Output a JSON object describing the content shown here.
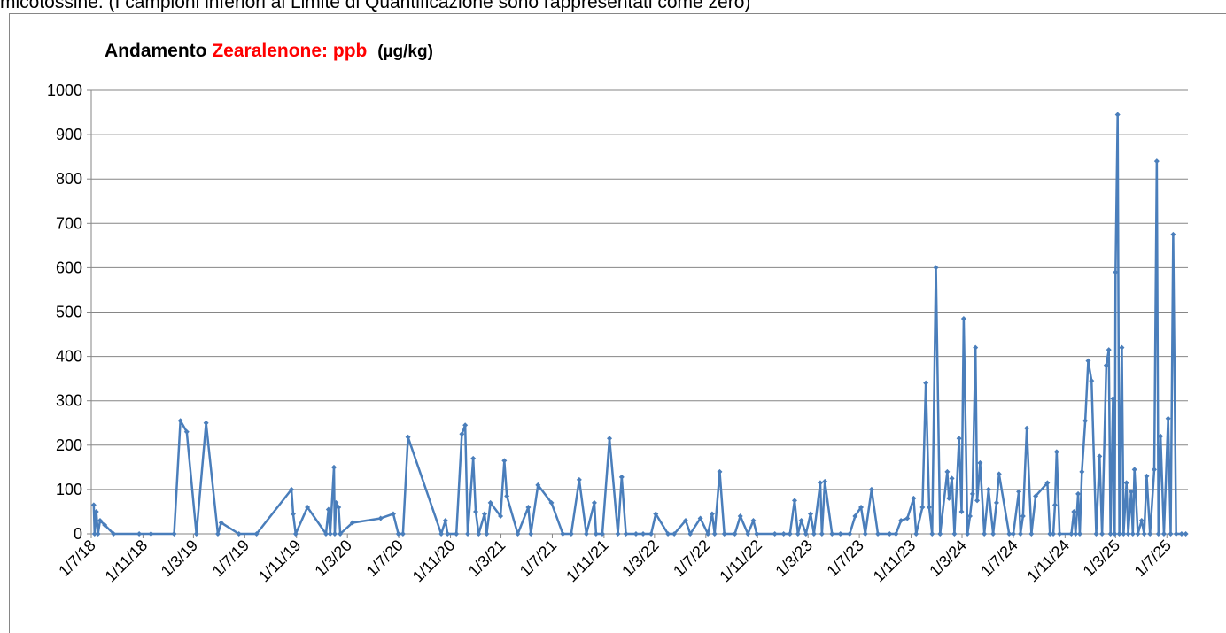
{
  "header_text": "micotossine. (I campioni inferiori al Limite di Quantificazione sono rappresentati come zero)",
  "chart_data": {
    "type": "line",
    "title": [
      "Andamento",
      "Zearalenone:",
      "ppb",
      "(µg/kg)"
    ],
    "title_colors": [
      "#000000",
      "#ff0000",
      "#ff0000",
      "#000000"
    ],
    "color": "#4a7ebb",
    "grid": true,
    "ylim": [
      0,
      1000
    ],
    "yticks": [
      0,
      100,
      200,
      300,
      400,
      500,
      600,
      700,
      800,
      900,
      1000
    ],
    "xlim": [
      "2018-07-01",
      "2025-08-20"
    ],
    "xticks": [
      {
        "value": "2018-07-01",
        "label": "1/7/18"
      },
      {
        "value": "2018-11-01",
        "label": "1/11/18"
      },
      {
        "value": "2019-03-01",
        "label": "1/3/19"
      },
      {
        "value": "2019-07-01",
        "label": "1/7/19"
      },
      {
        "value": "2019-11-01",
        "label": "1/11/19"
      },
      {
        "value": "2020-03-01",
        "label": "1/3/20"
      },
      {
        "value": "2020-07-01",
        "label": "1/7/20"
      },
      {
        "value": "2020-11-01",
        "label": "1/11/20"
      },
      {
        "value": "2021-03-01",
        "label": "1/3/21"
      },
      {
        "value": "2021-07-01",
        "label": "1/7/21"
      },
      {
        "value": "2021-11-01",
        "label": "1/11/21"
      },
      {
        "value": "2022-03-01",
        "label": "1/3/22"
      },
      {
        "value": "2022-07-01",
        "label": "1/7/22"
      },
      {
        "value": "2022-11-01",
        "label": "1/11/22"
      },
      {
        "value": "2023-03-01",
        "label": "1/3/23"
      },
      {
        "value": "2023-07-01",
        "label": "1/7/23"
      },
      {
        "value": "2023-11-01",
        "label": "1/11/23"
      },
      {
        "value": "2024-03-01",
        "label": "1/3/24"
      },
      {
        "value": "2024-07-01",
        "label": "1/7/24"
      },
      {
        "value": "2024-11-01",
        "label": "1/11/24"
      },
      {
        "value": "2025-03-01",
        "label": "1/3/25"
      },
      {
        "value": "2025-07-01",
        "label": "1/7/25"
      }
    ],
    "x": [
      "2018-07-07",
      "2018-07-09",
      "2018-07-13",
      "2018-07-17",
      "2018-07-22",
      "2018-08-02",
      "2018-08-23",
      "2018-10-23",
      "2018-11-20",
      "2019-01-14",
      "2019-01-29",
      "2019-02-13",
      "2019-03-08",
      "2019-03-31",
      "2019-04-28",
      "2019-05-06",
      "2019-06-17",
      "2019-07-29",
      "2019-10-20",
      "2019-10-24",
      "2019-10-30",
      "2019-11-27",
      "2020-01-10",
      "2020-01-16",
      "2020-01-20",
      "2020-01-29",
      "2020-01-31",
      "2020-02-03",
      "2020-02-09",
      "2020-02-13",
      "2020-03-13",
      "2020-05-19",
      "2020-06-18",
      "2020-06-30",
      "2020-07-11",
      "2020-07-23",
      "2020-10-10",
      "2020-10-20",
      "2020-10-25",
      "2020-11-15",
      "2020-11-28",
      "2020-12-06",
      "2020-12-12",
      "2020-12-25",
      "2020-12-31",
      "2021-01-07",
      "2021-01-21",
      "2021-01-26",
      "2021-02-04",
      "2021-02-28",
      "2021-03-09",
      "2021-03-15",
      "2021-04-10",
      "2021-05-05",
      "2021-05-11",
      "2021-05-28",
      "2021-06-29",
      "2021-07-26",
      "2021-08-15",
      "2021-09-03",
      "2021-09-20",
      "2021-10-09",
      "2021-10-13",
      "2021-10-28",
      "2021-11-14",
      "2021-12-04",
      "2021-12-13",
      "2021-12-23",
      "2022-01-16",
      "2022-02-02",
      "2022-02-21",
      "2022-03-04",
      "2022-04-02",
      "2022-04-17",
      "2022-05-14",
      "2022-05-25",
      "2022-06-18",
      "2022-07-06",
      "2022-07-16",
      "2022-07-22",
      "2022-08-03",
      "2022-08-14",
      "2022-09-08",
      "2022-09-21",
      "2022-10-09",
      "2022-10-22",
      "2022-10-30",
      "2022-12-12",
      "2023-01-02",
      "2023-01-17",
      "2023-01-28",
      "2023-02-05",
      "2023-02-13",
      "2023-02-24",
      "2023-03-07",
      "2023-03-15",
      "2023-03-30",
      "2023-04-03",
      "2023-04-10",
      "2023-04-27",
      "2023-05-17",
      "2023-06-08",
      "2023-06-21",
      "2023-07-05",
      "2023-07-15",
      "2023-07-30",
      "2023-08-14",
      "2023-09-11",
      "2023-09-26",
      "2023-10-08",
      "2023-10-23",
      "2023-11-07",
      "2023-11-13",
      "2023-11-28",
      "2023-12-06",
      "2023-12-14",
      "2023-12-21",
      "2023-12-30",
      "2024-01-09",
      "2024-01-26",
      "2024-01-30",
      "2024-02-06",
      "2024-02-12",
      "2024-02-23",
      "2024-02-29",
      "2024-03-05",
      "2024-03-14",
      "2024-03-20",
      "2024-03-26",
      "2024-04-02",
      "2024-04-06",
      "2024-04-13",
      "2024-04-23",
      "2024-05-03",
      "2024-05-14",
      "2024-05-22",
      "2024-05-28",
      "2024-06-21",
      "2024-07-01",
      "2024-07-14",
      "2024-07-18",
      "2024-07-24",
      "2024-08-02",
      "2024-08-13",
      "2024-08-23",
      "2024-09-20",
      "2024-09-26",
      "2024-10-04",
      "2024-10-08",
      "2024-10-12",
      "2024-10-19",
      "2024-11-16",
      "2024-11-22",
      "2024-11-26",
      "2024-12-02",
      "2024-12-06",
      "2024-12-11",
      "2024-12-19",
      "2024-12-26",
      "2025-01-03",
      "2025-01-14",
      "2025-01-22",
      "2025-01-28",
      "2025-02-07",
      "2025-02-13",
      "2025-02-17",
      "2025-02-23",
      "2025-02-27",
      "2025-03-01",
      "2025-03-06",
      "2025-03-10",
      "2025-03-16",
      "2025-03-20",
      "2025-03-27",
      "2025-03-31",
      "2025-04-07",
      "2025-04-11",
      "2025-04-15",
      "2025-04-23",
      "2025-05-02",
      "2025-05-08",
      "2025-05-14",
      "2025-05-22",
      "2025-06-01",
      "2025-06-07",
      "2025-06-11",
      "2025-06-16",
      "2025-06-24",
      "2025-07-04",
      "2025-07-10",
      "2025-07-16",
      "2025-07-23",
      "2025-08-05",
      "2025-08-15"
    ],
    "values": [
      65,
      0,
      50,
      0,
      30,
      20,
      0,
      0,
      0,
      0,
      255,
      230,
      0,
      250,
      0,
      25,
      0,
      0,
      100,
      45,
      0,
      60,
      0,
      55,
      0,
      150,
      0,
      70,
      60,
      0,
      25,
      35,
      45,
      0,
      0,
      218,
      0,
      30,
      0,
      0,
      225,
      245,
      0,
      170,
      50,
      0,
      45,
      0,
      70,
      40,
      165,
      85,
      0,
      60,
      0,
      110,
      70,
      0,
      0,
      122,
      0,
      70,
      0,
      0,
      215,
      0,
      128,
      0,
      0,
      0,
      0,
      45,
      0,
      0,
      30,
      0,
      35,
      0,
      45,
      0,
      140,
      0,
      0,
      40,
      0,
      30,
      0,
      0,
      0,
      0,
      75,
      0,
      30,
      0,
      45,
      0,
      115,
      0,
      118,
      0,
      0,
      0,
      40,
      60,
      0,
      100,
      0,
      0,
      0,
      30,
      35,
      80,
      0,
      60,
      340,
      60,
      0,
      600,
      0,
      140,
      80,
      125,
      0,
      215,
      50,
      485,
      0,
      40,
      90,
      420,
      75,
      160,
      0,
      100,
      0,
      70,
      135,
      0,
      0,
      95,
      0,
      40,
      238,
      0,
      85,
      115,
      0,
      0,
      65,
      185,
      0,
      0,
      50,
      0,
      90,
      0,
      140,
      255,
      390,
      345,
      0,
      175,
      0,
      380,
      415,
      0,
      305,
      0,
      590,
      945,
      0,
      420,
      0,
      115,
      0,
      95,
      0,
      145,
      0,
      30,
      0,
      130,
      0,
      145,
      840,
      0,
      220,
      0,
      260,
      0,
      675,
      0,
      0,
      0
    ]
  }
}
